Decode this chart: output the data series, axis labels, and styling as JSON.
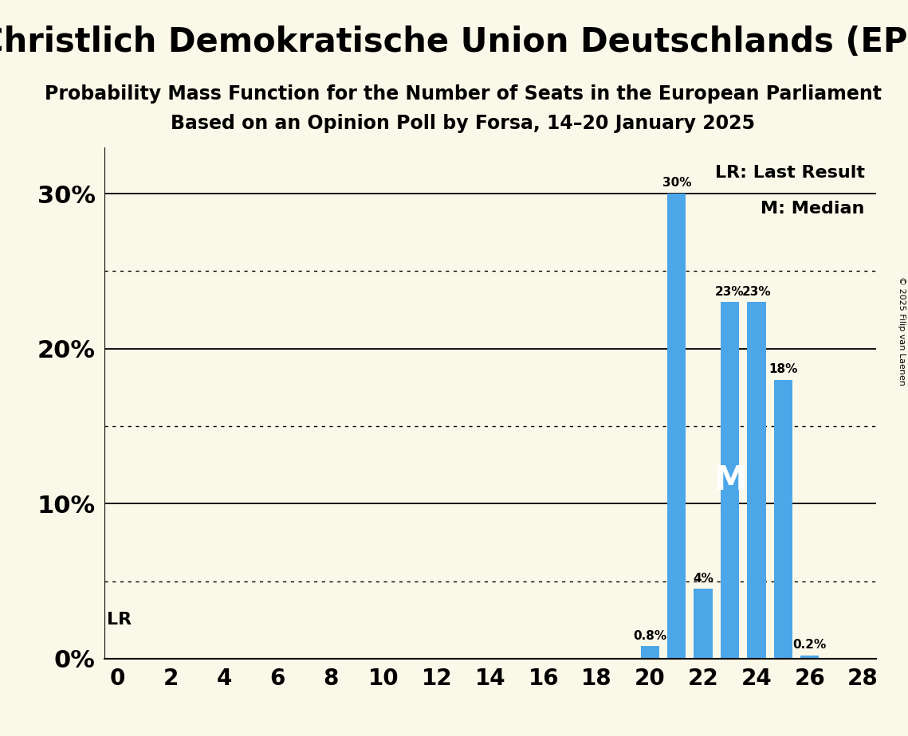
{
  "title": "Christlich Demokratische Union Deutschlands (EPP)",
  "subtitle1": "Probability Mass Function for the Number of Seats in the European Parliament",
  "subtitle2": "Based on an Opinion Poll by Forsa, 14–20 January 2025",
  "copyright": "© 2025 Filip van Laenen",
  "seats": [
    0,
    1,
    2,
    3,
    4,
    5,
    6,
    7,
    8,
    9,
    10,
    11,
    12,
    13,
    14,
    15,
    16,
    17,
    18,
    19,
    20,
    21,
    22,
    23,
    24,
    25,
    26,
    27,
    28
  ],
  "probabilities": [
    0,
    0,
    0,
    0,
    0,
    0,
    0,
    0,
    0,
    0,
    0,
    0,
    0,
    0,
    0,
    0,
    0,
    0,
    0,
    0,
    0.8,
    30,
    4.5,
    23,
    23,
    18,
    0.2,
    0,
    0
  ],
  "bar_color": "#4da6e8",
  "background_color": "#faf8e8",
  "last_result_seat": 21,
  "median_seat": 23,
  "lr_label": "LR",
  "median_label": "M",
  "legend_lr": "LR: Last Result",
  "legend_m": "M: Median",
  "xlim": [
    -0.5,
    28.5
  ],
  "ylim": [
    0,
    33
  ],
  "yticks": [
    0,
    10,
    20,
    30
  ],
  "ytick_labels": [
    "0%",
    "10%",
    "20%",
    "30%"
  ],
  "dotted_yticks": [
    5,
    15,
    25
  ],
  "xticks": [
    0,
    2,
    4,
    6,
    8,
    10,
    12,
    14,
    16,
    18,
    20,
    22,
    24,
    26,
    28
  ],
  "xlabel_fontsize": 20,
  "ylabel_fontsize": 22,
  "title_fontsize": 30,
  "subtitle_fontsize": 17,
  "bar_label_fontsize": 11
}
